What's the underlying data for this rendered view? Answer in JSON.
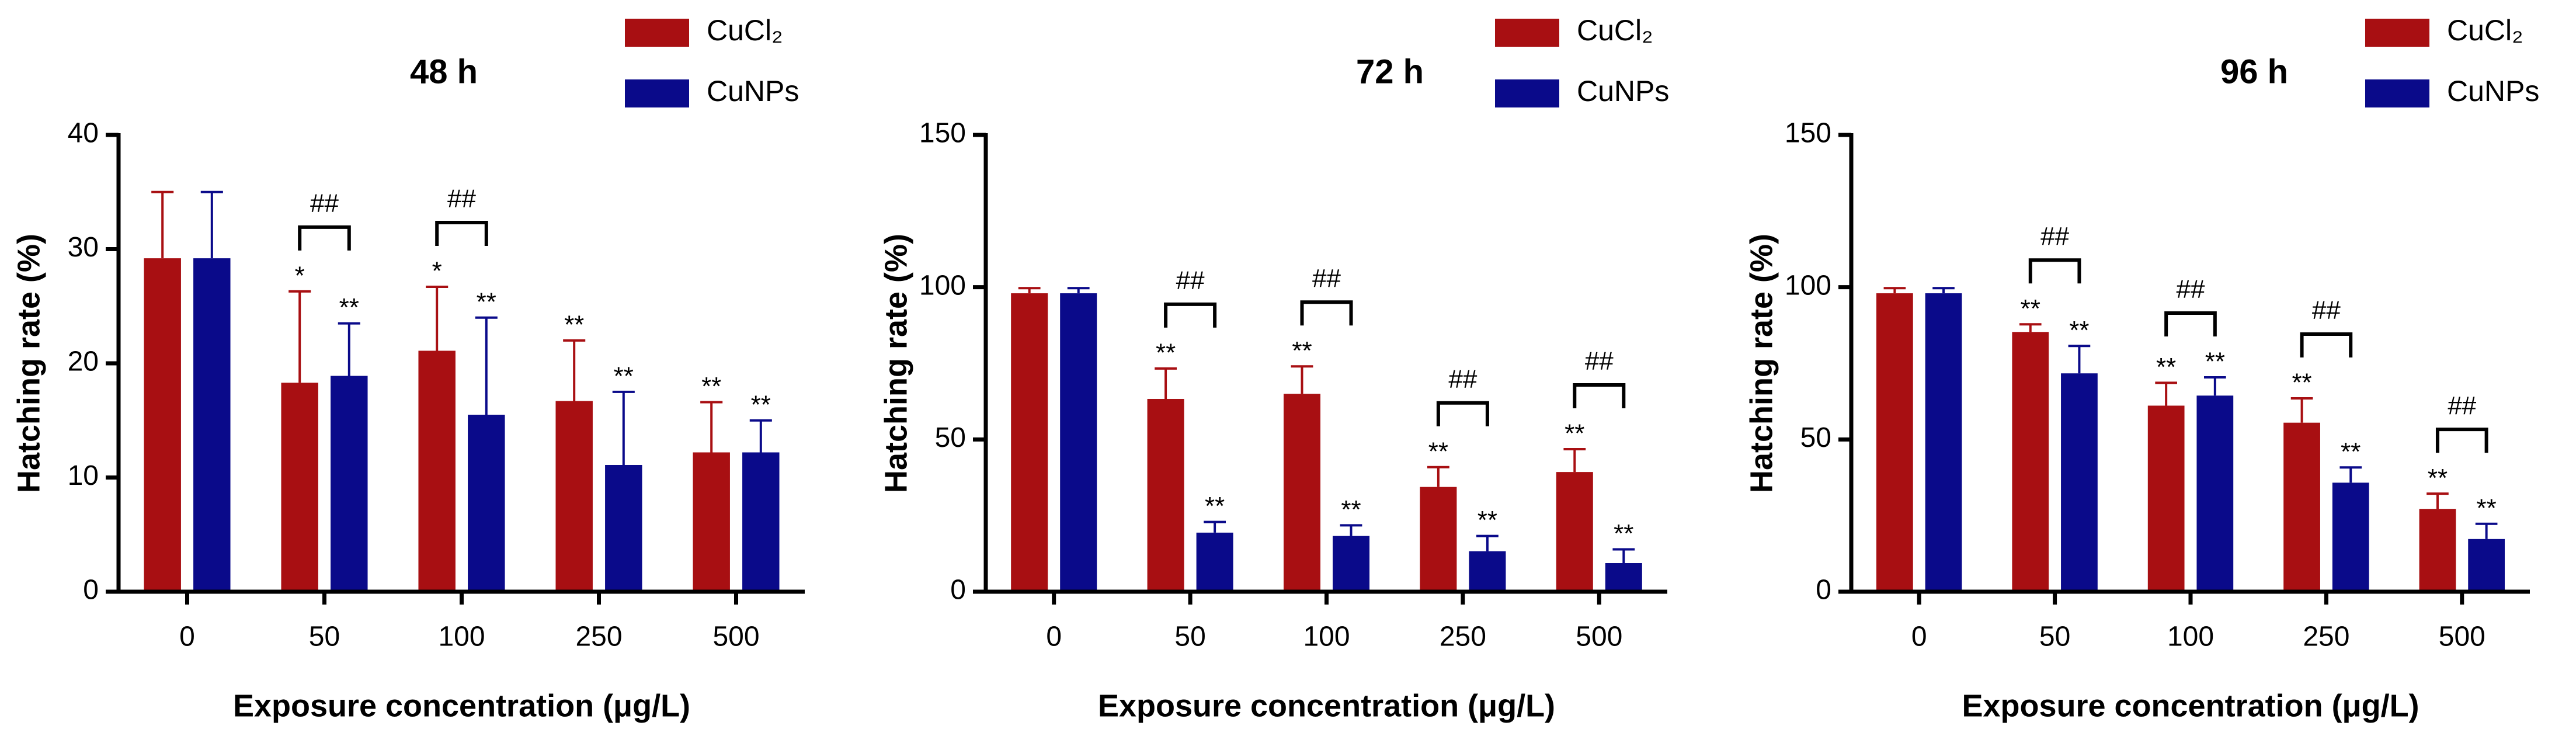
{
  "chart_data": [
    {
      "type": "bar",
      "title": "48 h",
      "xlabel": "Exposure concentration (μg/L)",
      "ylabel": "Hatching rate (%)",
      "categories": [
        "0",
        "50",
        "100",
        "250",
        "500"
      ],
      "ylim": [
        0,
        40
      ],
      "yticks": [
        0,
        10,
        20,
        30,
        40
      ],
      "series": [
        {
          "name": "CuCl₂",
          "color": "#a80f12",
          "values": [
            29.2,
            18.3,
            21.1,
            16.7,
            12.2
          ],
          "errors": [
            5.8,
            8.0,
            5.6,
            5.3,
            4.4
          ],
          "annotations": [
            null,
            "*",
            "*",
            "**",
            "**"
          ]
        },
        {
          "name": "CuNPs",
          "color": "#0a0a8a",
          "values": [
            29.2,
            18.9,
            15.5,
            11.1,
            12.2
          ],
          "errors": [
            5.8,
            4.6,
            8.5,
            6.4,
            2.8
          ],
          "annotations": [
            null,
            "**",
            "**",
            "**",
            "**"
          ]
        }
      ],
      "brackets": [
        {
          "category": "50",
          "label": "##"
        },
        {
          "category": "100",
          "label": "##"
        }
      ]
    },
    {
      "type": "bar",
      "title": "72 h",
      "xlabel": "Exposure concentration (μg/L)",
      "ylabel": "Hatching rate (%)",
      "categories": [
        "0",
        "50",
        "100",
        "250",
        "500"
      ],
      "ylim": [
        0,
        150
      ],
      "yticks": [
        0,
        50,
        100,
        150
      ],
      "series": [
        {
          "name": "CuCl₂",
          "color": "#a80f12",
          "values": [
            98,
            63.3,
            65,
            34.4,
            39.3
          ],
          "errors": [
            1.7,
            10,
            9,
            6.5,
            7.5
          ],
          "annotations": [
            null,
            "**",
            "**",
            "**",
            "**"
          ]
        },
        {
          "name": "CuNPs",
          "color": "#0a0a8a",
          "values": [
            98,
            19.4,
            18.3,
            13.3,
            9.4
          ],
          "errors": [
            1.7,
            3.5,
            3.5,
            5,
            4.5
          ],
          "annotations": [
            null,
            "**",
            "**",
            "**",
            "**"
          ]
        }
      ],
      "brackets": [
        {
          "category": "50",
          "label": "##"
        },
        {
          "category": "100",
          "label": "##"
        },
        {
          "category": "250",
          "label": "##"
        },
        {
          "category": "500",
          "label": "##"
        }
      ]
    },
    {
      "type": "bar",
      "title": "96 h",
      "xlabel": "Exposure concentration (μg/L)",
      "ylabel": "Hatching rate (%)",
      "categories": [
        "0",
        "50",
        "100",
        "250",
        "500"
      ],
      "ylim": [
        0,
        150
      ],
      "yticks": [
        0,
        50,
        100,
        150
      ],
      "series": [
        {
          "name": "CuCl₂",
          "color": "#a80f12",
          "values": [
            98,
            85.3,
            61.1,
            55.5,
            27.2
          ],
          "errors": [
            1.7,
            2.5,
            7.5,
            8,
            5
          ],
          "annotations": [
            null,
            "**",
            "**",
            "**",
            "**"
          ]
        },
        {
          "name": "CuNPs",
          "color": "#0a0a8a",
          "values": [
            98,
            71.7,
            64.4,
            35.8,
            17.3
          ],
          "errors": [
            1.7,
            9,
            6,
            5,
            5
          ],
          "annotations": [
            null,
            "**",
            "**",
            "**",
            "**"
          ]
        }
      ],
      "brackets": [
        {
          "category": "50",
          "label": "##"
        },
        {
          "category": "100",
          "label": "##"
        },
        {
          "category": "250",
          "label": "##"
        },
        {
          "category": "500",
          "label": "##"
        }
      ]
    }
  ]
}
